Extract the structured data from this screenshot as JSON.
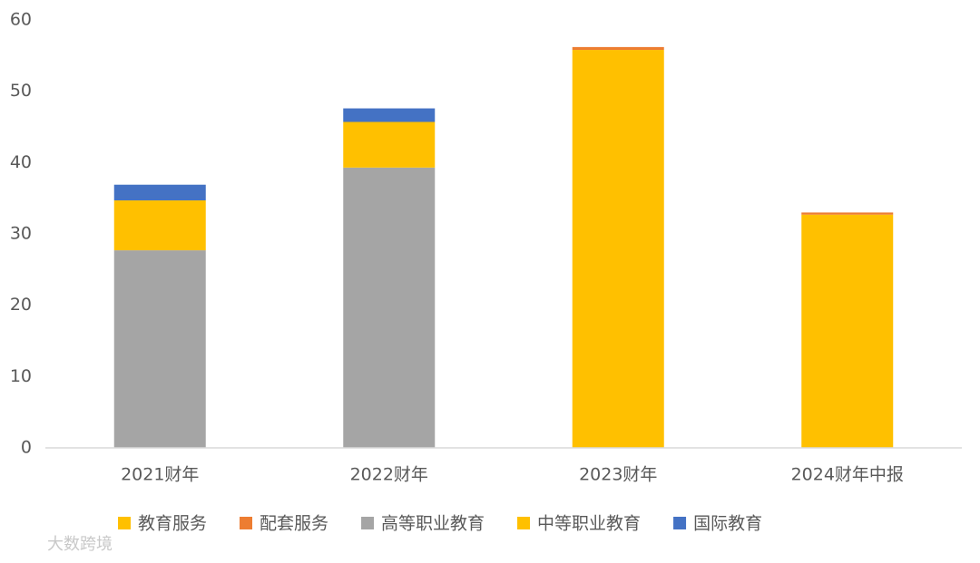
{
  "chart_data": {
    "type": "stacked_bar",
    "categories": [
      "2021财年",
      "2022财年",
      "2023财年",
      "2024财年中报"
    ],
    "series": [
      {
        "name": "教育服务",
        "color": "#ffc000",
        "values": [
          null,
          null,
          55.8,
          32.7
        ]
      },
      {
        "name": "配套服务",
        "color": "#ed7d31",
        "values": [
          null,
          null,
          0.4,
          0.3
        ]
      },
      {
        "name": "高等职业教育",
        "color": "#a5a5a5",
        "values": [
          27.7,
          39.3,
          null,
          null
        ]
      },
      {
        "name": "中等职业教育",
        "color": "#ffc000",
        "values": [
          7.0,
          6.4,
          null,
          null
        ]
      },
      {
        "name": "国际教育",
        "color": "#4472c4",
        "values": [
          2.2,
          1.9,
          null,
          null
        ]
      }
    ],
    "ylim": [
      0,
      60
    ],
    "yticks": [
      0,
      10,
      20,
      30,
      40,
      50,
      60
    ],
    "grid": false,
    "legend": "bottom"
  },
  "watermark": "大数跨境"
}
